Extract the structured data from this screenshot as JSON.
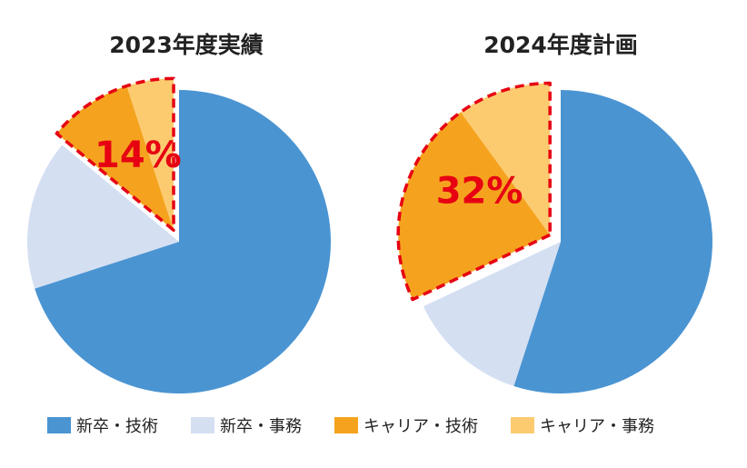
{
  "chart_data": [
    {
      "type": "pie",
      "title": "2023年度実績",
      "slices": [
        {
          "label": "新卒・技術",
          "value": 70
        },
        {
          "label": "新卒・事務",
          "value": 16
        },
        {
          "label": "キャリア・技術",
          "value": 9
        },
        {
          "label": "キャリア・事務",
          "value": 5
        }
      ],
      "highlight": {
        "label": "14%",
        "slices": [
          "キャリア・技術",
          "キャリア・事務"
        ],
        "exploded": true
      }
    },
    {
      "type": "pie",
      "title": "2024年度計画",
      "slices": [
        {
          "label": "新卒・技術",
          "value": 55
        },
        {
          "label": "新卒・事務",
          "value": 13
        },
        {
          "label": "キャリア・技術",
          "value": 22
        },
        {
          "label": "キャリア・事務",
          "value": 10
        }
      ],
      "highlight": {
        "label": "32%",
        "slices": [
          "キャリア・技術",
          "キャリア・事務"
        ],
        "exploded": true
      }
    }
  ],
  "legend": [
    {
      "label": "新卒・技術",
      "color": "#4a94d2"
    },
    {
      "label": "新卒・事務",
      "color": "#d4dff2"
    },
    {
      "label": "キャリア・技術",
      "color": "#f5a31e"
    },
    {
      "label": "キャリア・事務",
      "color": "#fccb70"
    }
  ],
  "colors": {
    "highlight_border": "#e60012",
    "highlight_text": "#e60012"
  }
}
